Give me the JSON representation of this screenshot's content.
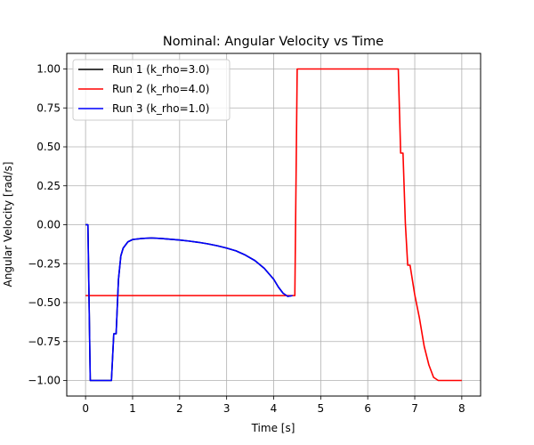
{
  "chart_data": {
    "type": "line",
    "title": "Nominal: Angular Velocity vs Time",
    "xlabel": "Time [s]",
    "ylabel": "Angular Velocity [rad/s]",
    "xlim": [
      -0.4,
      8.4
    ],
    "ylim": [
      -1.1,
      1.1
    ],
    "xticks": [
      0,
      1,
      2,
      3,
      4,
      5,
      6,
      7,
      8
    ],
    "xtick_labels": [
      "0",
      "1",
      "2",
      "3",
      "4",
      "5",
      "6",
      "7",
      "8"
    ],
    "yticks": [
      1.0,
      0.75,
      0.5,
      0.25,
      0.0,
      -0.25,
      -0.5,
      -0.75,
      -1.0
    ],
    "ytick_labels": [
      "1.00",
      "0.75",
      "0.50",
      "0.25",
      "0.00",
      "−0.25",
      "−0.50",
      "−0.75",
      "−1.00"
    ],
    "grid": true,
    "legend_position": "top-left",
    "series": [
      {
        "name": "Run 1 (k_rho=3.0)",
        "color": "#000000",
        "x": [
          0.0,
          0.05,
          0.1,
          0.55,
          0.6,
          0.65,
          0.7,
          0.75,
          0.8,
          0.9,
          1.0,
          1.2,
          1.4,
          1.6,
          1.8,
          2.0,
          2.2,
          2.4,
          2.6,
          2.8,
          3.0,
          3.2,
          3.4,
          3.6,
          3.8,
          4.0,
          4.1,
          4.2,
          4.3,
          4.4
        ],
        "y": [
          0.0,
          0.0,
          -1.0,
          -1.0,
          -0.7,
          -0.7,
          -0.35,
          -0.2,
          -0.15,
          -0.11,
          -0.095,
          -0.088,
          -0.085,
          -0.088,
          -0.093,
          -0.098,
          -0.105,
          -0.113,
          -0.123,
          -0.135,
          -0.15,
          -0.168,
          -0.195,
          -0.23,
          -0.28,
          -0.35,
          -0.4,
          -0.44,
          -0.46,
          -0.455
        ]
      },
      {
        "name": "Run 2 (k_rho=4.0)",
        "color": "#ff0000",
        "x": [
          0.0,
          4.45,
          4.5,
          6.65,
          6.7,
          6.75,
          6.8,
          6.85,
          6.9,
          7.0,
          7.1,
          7.2,
          7.3,
          7.4,
          7.5,
          7.6,
          8.0
        ],
        "y": [
          -0.455,
          -0.455,
          1.0,
          1.0,
          0.46,
          0.46,
          0.01,
          -0.26,
          -0.26,
          -0.45,
          -0.6,
          -0.78,
          -0.9,
          -0.98,
          -1.0,
          -1.0,
          -1.0
        ]
      },
      {
        "name": "Run 3 (k_rho=1.0)",
        "color": "#0000ff",
        "x": [
          0.0,
          0.05,
          0.1,
          0.55,
          0.6,
          0.65,
          0.7,
          0.75,
          0.8,
          0.9,
          1.0,
          1.2,
          1.4,
          1.6,
          1.8,
          2.0,
          2.2,
          2.4,
          2.6,
          2.8,
          3.0,
          3.2,
          3.4,
          3.6,
          3.8,
          4.0,
          4.1,
          4.2,
          4.3,
          4.4
        ],
        "y": [
          0.0,
          0.0,
          -1.0,
          -1.0,
          -0.7,
          -0.7,
          -0.35,
          -0.2,
          -0.15,
          -0.11,
          -0.095,
          -0.088,
          -0.085,
          -0.088,
          -0.093,
          -0.098,
          -0.105,
          -0.113,
          -0.123,
          -0.135,
          -0.15,
          -0.168,
          -0.195,
          -0.23,
          -0.28,
          -0.35,
          -0.4,
          -0.44,
          -0.46,
          -0.455
        ]
      }
    ]
  }
}
